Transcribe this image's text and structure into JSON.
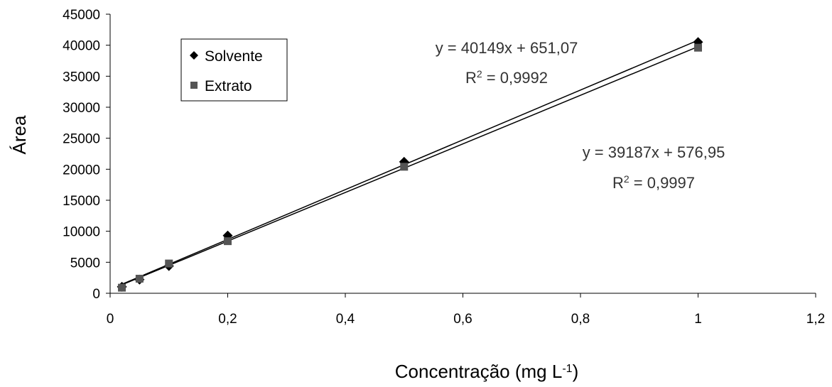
{
  "chart_data": {
    "type": "scatter",
    "ylabel": "Área",
    "xlabel": {
      "base": "Concentração (mg L",
      "sup": "-1",
      "tail": ")"
    },
    "xlim": [
      0,
      1.2
    ],
    "ylim": [
      0,
      45000
    ],
    "x_ticks": [
      0,
      0.2,
      0.4,
      0.6,
      0.8,
      1,
      1.2
    ],
    "x_tick_labels": [
      "0",
      "0,2",
      "0,4",
      "0,6",
      "0,8",
      "1",
      "1,2"
    ],
    "y_ticks": [
      0,
      5000,
      10000,
      15000,
      20000,
      25000,
      30000,
      35000,
      40000,
      45000
    ],
    "y_tick_labels": [
      "0",
      "5000",
      "10000",
      "15000",
      "20000",
      "25000",
      "30000",
      "35000",
      "40000",
      "45000"
    ],
    "grid": false,
    "legend_position": "top-left",
    "series": [
      {
        "name": "Solvente",
        "marker": "diamond",
        "color": "#000000",
        "points": [
          [
            0.02,
            1050
          ],
          [
            0.05,
            2200
          ],
          [
            0.1,
            4400
          ],
          [
            0.2,
            9300
          ],
          [
            0.5,
            21200
          ],
          [
            1,
            40500
          ]
        ],
        "trendline": {
          "slope": 40149,
          "intercept": 651.07
        },
        "equation": "y = 40149x + 651,07",
        "r2_label": {
          "base": "R",
          "sup": "2",
          "tail": " = 0,9992"
        }
      },
      {
        "name": "Extrato",
        "marker": "square",
        "color": "#555555",
        "points": [
          [
            0.02,
            900
          ],
          [
            0.05,
            2350
          ],
          [
            0.1,
            4800
          ],
          [
            0.2,
            8400
          ],
          [
            0.5,
            20400
          ],
          [
            1,
            39600
          ]
        ],
        "trendline": {
          "slope": 39187,
          "intercept": 576.95
        },
        "equation": "y = 39187x + 576,95",
        "r2_label": {
          "base": "R",
          "sup": "2",
          "tail": " = 0,9997"
        }
      }
    ]
  }
}
